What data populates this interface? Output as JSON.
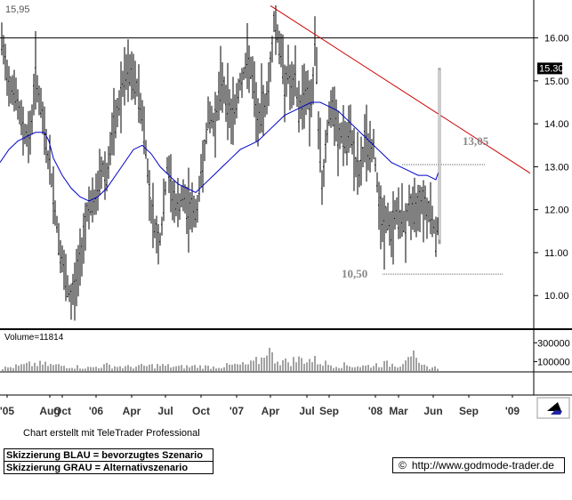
{
  "chart_data": {
    "type": "candlestick",
    "panes": {
      "price": {
        "top_left_label": "15,95",
        "y_ticks": [
          "16.00",
          "15.00",
          "14.00",
          "13.00",
          "12.00",
          "11.00",
          "10.00"
        ],
        "y_tick_values": [
          16,
          15,
          14,
          13,
          12,
          11,
          10
        ],
        "ylim": [
          9.3,
          16.8
        ],
        "last_price_label": "15.30",
        "last_price": 15.3,
        "horizontal_line": 16.0,
        "annotations": [
          {
            "text": "13,05",
            "value": 13.05
          },
          {
            "text": "10,50",
            "value": 10.5
          }
        ],
        "trendline": {
          "color": "#cc0000",
          "from": {
            "x": "Apr '07",
            "y": 16.75
          },
          "to": {
            "x": "'09",
            "y": 12.85
          }
        },
        "moving_average_color": "#0000cc"
      },
      "volume": {
        "label": "Volume=11814",
        "y_ticks": [
          "300000",
          "100000"
        ],
        "y_tick_values": [
          300000,
          100000
        ],
        "ylim": [
          0,
          350000
        ]
      }
    },
    "x_tick_labels": [
      "'05",
      "Aug",
      "Oct",
      "'06",
      "Apr",
      "Jul",
      "Oct",
      "'07",
      "Apr",
      "Jul",
      "Sep",
      "'08",
      "Mar",
      "Jun",
      "Sep",
      "'09"
    ],
    "close_path": [
      [
        0,
        16.1
      ],
      [
        5,
        15.5
      ],
      [
        10,
        15.0
      ],
      [
        16,
        14.8
      ],
      [
        22,
        14.2
      ],
      [
        28,
        13.8
      ],
      [
        34,
        13.7
      ],
      [
        40,
        15.2
      ],
      [
        46,
        14.3
      ],
      [
        52,
        13.5
      ],
      [
        58,
        12.7
      ],
      [
        63,
        11.8
      ],
      [
        68,
        11.0
      ],
      [
        72,
        10.5
      ],
      [
        76,
        10.1
      ],
      [
        80,
        9.9
      ],
      [
        85,
        10.3
      ],
      [
        90,
        10.8
      ],
      [
        95,
        11.6
      ],
      [
        100,
        12.2
      ],
      [
        105,
        12.0
      ],
      [
        110,
        12.5
      ],
      [
        115,
        13.0
      ],
      [
        120,
        12.8
      ],
      [
        125,
        13.6
      ],
      [
        130,
        14.0
      ],
      [
        135,
        14.6
      ],
      [
        140,
        15.0
      ],
      [
        145,
        15.2
      ],
      [
        150,
        15.0
      ],
      [
        155,
        14.8
      ],
      [
        160,
        14.2
      ],
      [
        164,
        13.4
      ],
      [
        168,
        12.4
      ],
      [
        172,
        11.8
      ],
      [
        176,
        11.4
      ],
      [
        180,
        11.3
      ],
      [
        184,
        12.0
      ],
      [
        188,
        13.0
      ],
      [
        192,
        12.5
      ],
      [
        196,
        12.2
      ],
      [
        200,
        12.0
      ],
      [
        205,
        12.3
      ],
      [
        210,
        12.0
      ],
      [
        215,
        12.1
      ],
      [
        220,
        11.8
      ],
      [
        225,
        12.6
      ],
      [
        230,
        13.5
      ],
      [
        235,
        14.2
      ],
      [
        240,
        14.0
      ],
      [
        245,
        14.5
      ],
      [
        250,
        15.0
      ],
      [
        255,
        14.5
      ],
      [
        260,
        14.2
      ],
      [
        265,
        14.4
      ],
      [
        270,
        15.0
      ],
      [
        275,
        15.2
      ],
      [
        280,
        15.5
      ],
      [
        285,
        14.8
      ],
      [
        290,
        14.0
      ],
      [
        295,
        14.4
      ],
      [
        300,
        14.6
      ],
      [
        305,
        15.5
      ],
      [
        308,
        16.4
      ],
      [
        312,
        16.1
      ],
      [
        316,
        15.6
      ],
      [
        320,
        15.0
      ],
      [
        324,
        15.2
      ],
      [
        328,
        14.7
      ],
      [
        332,
        15.0
      ],
      [
        336,
        14.3
      ],
      [
        340,
        14.6
      ],
      [
        344,
        14.9
      ],
      [
        348,
        14.4
      ],
      [
        352,
        14.9
      ],
      [
        355,
        16.0
      ],
      [
        358,
        14.0
      ],
      [
        362,
        12.5
      ],
      [
        366,
        13.5
      ],
      [
        370,
        14.2
      ],
      [
        375,
        14.3
      ],
      [
        380,
        13.6
      ],
      [
        385,
        13.8
      ],
      [
        390,
        13.5
      ],
      [
        395,
        13.8
      ],
      [
        400,
        13.0
      ],
      [
        405,
        12.8
      ],
      [
        410,
        13.6
      ],
      [
        415,
        13.4
      ],
      [
        420,
        13.4
      ],
      [
        425,
        12.5
      ],
      [
        430,
        11.6
      ],
      [
        435,
        11.8
      ],
      [
        440,
        11.4
      ],
      [
        445,
        12.0
      ],
      [
        450,
        11.8
      ],
      [
        455,
        11.6
      ],
      [
        460,
        12.1
      ],
      [
        465,
        11.8
      ],
      [
        470,
        12.2
      ],
      [
        475,
        12.3
      ],
      [
        480,
        12.0
      ],
      [
        485,
        12.0
      ],
      [
        490,
        11.3
      ],
      [
        493,
        11.8
      ],
      [
        495,
        15.3
      ]
    ],
    "ma_path": [
      [
        0,
        13.1
      ],
      [
        10,
        13.4
      ],
      [
        20,
        13.6
      ],
      [
        30,
        13.7
      ],
      [
        40,
        13.8
      ],
      [
        50,
        13.8
      ],
      [
        55,
        13.6
      ],
      [
        60,
        13.2
      ],
      [
        70,
        12.8
      ],
      [
        80,
        12.5
      ],
      [
        90,
        12.3
      ],
      [
        100,
        12.2
      ],
      [
        110,
        12.3
      ],
      [
        120,
        12.5
      ],
      [
        130,
        12.8
      ],
      [
        140,
        13.1
      ],
      [
        150,
        13.4
      ],
      [
        160,
        13.5
      ],
      [
        170,
        13.3
      ],
      [
        180,
        13.0
      ],
      [
        190,
        12.8
      ],
      [
        200,
        12.6
      ],
      [
        210,
        12.5
      ],
      [
        220,
        12.4
      ],
      [
        230,
        12.6
      ],
      [
        240,
        12.8
      ],
      [
        250,
        13.0
      ],
      [
        260,
        13.2
      ],
      [
        270,
        13.4
      ],
      [
        280,
        13.5
      ],
      [
        290,
        13.6
      ],
      [
        300,
        13.8
      ],
      [
        310,
        14.0
      ],
      [
        320,
        14.2
      ],
      [
        330,
        14.3
      ],
      [
        340,
        14.4
      ],
      [
        350,
        14.5
      ],
      [
        360,
        14.5
      ],
      [
        370,
        14.4
      ],
      [
        380,
        14.3
      ],
      [
        390,
        14.1
      ],
      [
        400,
        13.9
      ],
      [
        410,
        13.7
      ],
      [
        420,
        13.5
      ],
      [
        430,
        13.3
      ],
      [
        440,
        13.1
      ],
      [
        450,
        13.0
      ],
      [
        460,
        12.9
      ],
      [
        470,
        12.8
      ],
      [
        480,
        12.8
      ],
      [
        490,
        12.7
      ],
      [
        495,
        13.0
      ]
    ],
    "volume_profile": [
      [
        0,
        30000
      ],
      [
        20,
        60000
      ],
      [
        40,
        90000
      ],
      [
        60,
        70000
      ],
      [
        80,
        60000
      ],
      [
        100,
        40000
      ],
      [
        120,
        70000
      ],
      [
        140,
        50000
      ],
      [
        160,
        60000
      ],
      [
        180,
        70000
      ],
      [
        200,
        50000
      ],
      [
        220,
        60000
      ],
      [
        240,
        50000
      ],
      [
        260,
        70000
      ],
      [
        280,
        80000
      ],
      [
        295,
        150000
      ],
      [
        300,
        330000
      ],
      [
        305,
        180000
      ],
      [
        320,
        110000
      ],
      [
        340,
        150000
      ],
      [
        355,
        130000
      ],
      [
        370,
        80000
      ],
      [
        390,
        70000
      ],
      [
        410,
        60000
      ],
      [
        430,
        90000
      ],
      [
        450,
        80000
      ],
      [
        460,
        280000
      ],
      [
        470,
        70000
      ],
      [
        480,
        50000
      ],
      [
        495,
        40000
      ]
    ]
  },
  "legend": {
    "blue": "Skizzierung BLAU = bevorzugtes Szenario",
    "grey": "Skizzierung GRAU = Alternativszenario"
  },
  "credit": "Chart erstellt mit TeleTrader Professional",
  "source": {
    "copyright_symbol": "©",
    "url": "http://www.godmode-trader.de"
  }
}
